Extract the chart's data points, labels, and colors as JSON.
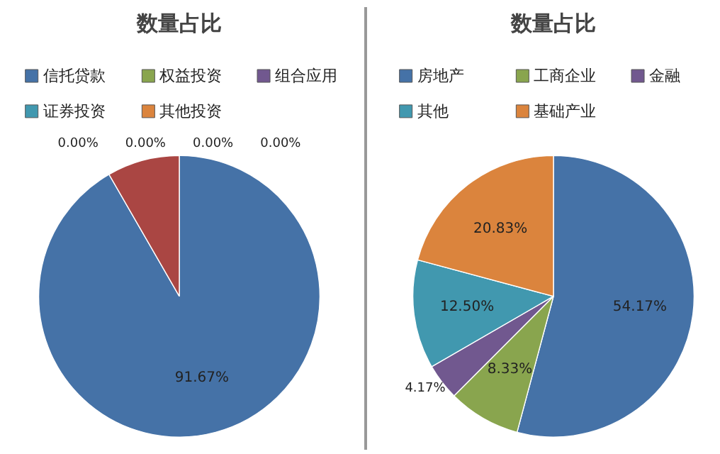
{
  "chart_data": [
    {
      "type": "pie",
      "title": "数量占比",
      "legend": "top",
      "categories": [
        "信托贷款",
        null,
        "权益投资",
        "组合应用",
        "证券投资",
        "其他投资"
      ],
      "values": [
        91.67,
        8.33,
        0,
        0,
        0,
        0
      ],
      "colors": [
        "#4572a7",
        "#aa4643",
        "#89a54e",
        "#71588f",
        "#4198af",
        "#db843d"
      ],
      "value_labels": [
        "91.67%",
        null,
        "0.00%",
        "0.00%",
        "0.00%",
        "0.00%"
      ]
    },
    {
      "type": "pie",
      "title": "数量占比",
      "legend": "top",
      "categories": [
        "房地产",
        "工商企业",
        "金融",
        "其他",
        "基础产业"
      ],
      "values": [
        54.17,
        8.33,
        4.17,
        12.5,
        20.83
      ],
      "colors": [
        "#4572a7",
        "#89a54e",
        "#71588f",
        "#4198af",
        "#db843d"
      ],
      "value_labels": [
        "54.17%",
        "8.33%",
        "4.17%",
        "12.50%",
        "20.83%"
      ]
    }
  ]
}
